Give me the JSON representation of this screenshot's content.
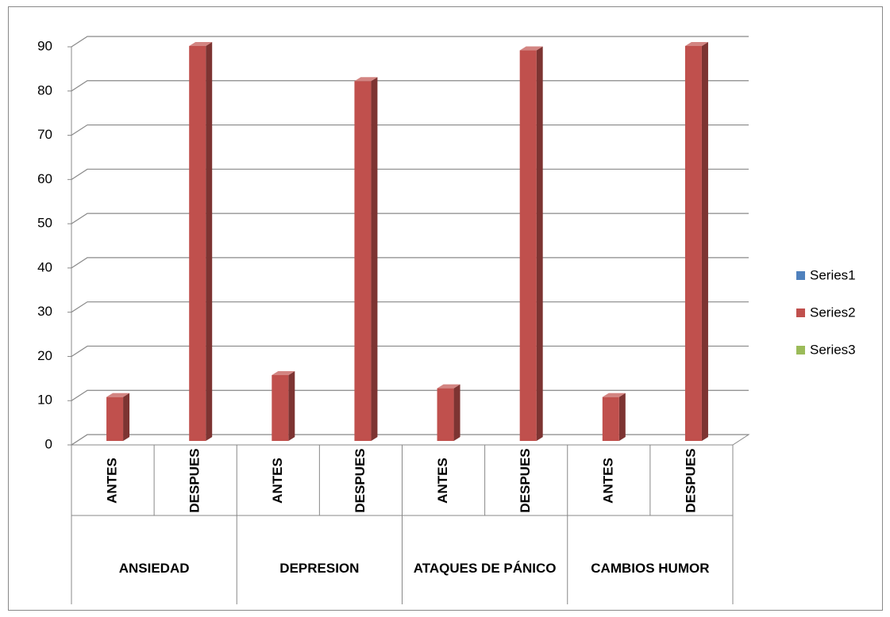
{
  "chart_data": {
    "type": "bar3d",
    "categories": [
      "ANTES",
      "DESPUES",
      "ANTES",
      "DESPUES",
      "ANTES",
      "DESPUES",
      "ANTES",
      "DESPUES"
    ],
    "groups": [
      "ANSIEDAD",
      "DEPRESION",
      "ATAQUES DE PÁNICO",
      "CAMBIOS HUMOR"
    ],
    "series": [
      {
        "name": "Series1",
        "color": "#4f81bd",
        "values": [
          null,
          null,
          null,
          null,
          null,
          null,
          null,
          null
        ]
      },
      {
        "name": "Series2",
        "color": "#c0504d",
        "values": [
          10,
          90,
          15,
          82,
          12,
          89,
          10,
          90
        ]
      },
      {
        "name": "Series3",
        "color": "#9bbb59",
        "values": [
          null,
          null,
          null,
          null,
          null,
          null,
          null,
          null
        ]
      }
    ],
    "ylim": [
      0,
      90
    ],
    "yticks": [
      0,
      10,
      20,
      30,
      40,
      50,
      60,
      70,
      80,
      90
    ],
    "grid": true,
    "legend": "right"
  }
}
